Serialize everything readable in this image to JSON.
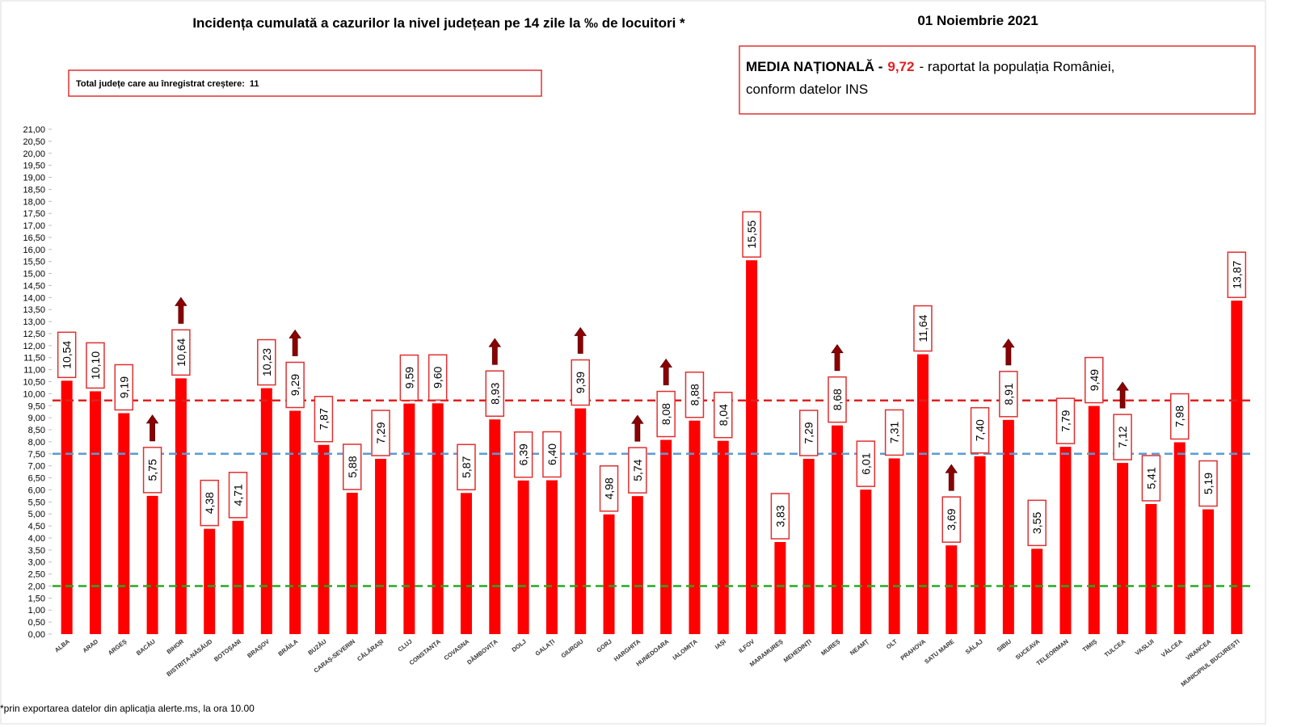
{
  "chart_data": {
    "type": "bar",
    "title": "Incidența cumulată a cazurilor la nivel județean pe 14 zile la ‰ de locuitori *",
    "date": "01 Noiembrie 2021",
    "increase_box": {
      "label": "Total județe care au înregistrat creștere:",
      "count": 11
    },
    "national_mean_box": {
      "prefix": "MEDIA NAȚIONALĂ -",
      "suffix": "-  raportat la populația României,",
      "line2": "conform datelor INS"
    },
    "footnote": "*prin exportarea datelor din aplicația alerte.ms, la ora 10.00",
    "categories": [
      "ALBA",
      "ARAD",
      "ARGEȘ",
      "BACĂU",
      "BIHOR",
      "BISTRIȚA-NĂSĂUD",
      "BOTOȘANI",
      "BRAȘOV",
      "BRĂILA",
      "BUZĂU",
      "CARAȘ-SEVERIN",
      "CĂLĂRAȘI",
      "CLUJ",
      "CONSTANȚA",
      "COVASNA",
      "DÂMBOVIȚA",
      "DOLJ",
      "GALAȚI",
      "GIURGIU",
      "GORJ",
      "HARGHITA",
      "HUNEDOARA",
      "IALOMIȚA",
      "IAȘI",
      "ILFOV",
      "MARAMUREȘ",
      "MEHEDINȚI",
      "MUREȘ",
      "NEAMȚ",
      "OLT",
      "PRAHOVA",
      "SATU MARE",
      "SĂLAJ",
      "SIBIU",
      "SUCEAVA",
      "TELEORMAN",
      "TIMIȘ",
      "TULCEA",
      "VASLUI",
      "VÂLCEA",
      "VRANCEA",
      "MUNICIPIUL BUCUREȘTI"
    ],
    "values": [
      10.54,
      10.1,
      9.19,
      5.75,
      10.64,
      4.38,
      4.71,
      10.23,
      9.29,
      7.87,
      5.88,
      7.29,
      9.59,
      9.6,
      5.87,
      8.93,
      6.39,
      6.4,
      9.39,
      4.98,
      5.74,
      8.08,
      8.88,
      8.04,
      15.55,
      3.83,
      7.29,
      8.68,
      6.01,
      7.31,
      11.64,
      3.69,
      7.4,
      8.91,
      3.55,
      7.79,
      9.49,
      7.12,
      5.41,
      7.98,
      5.19,
      13.87
    ],
    "value_labels": [
      "10,54",
      "10,10",
      "9,19",
      "5,75",
      "10,64",
      "4,38",
      "4,71",
      "10,23",
      "9,29",
      "7,87",
      "5,88",
      "7,29",
      "9,59",
      "9,60",
      "5,87",
      "8,93",
      "6,39",
      "6,40",
      "9,39",
      "4,98",
      "5,74",
      "8,08",
      "8,88",
      "8,04",
      "15,55",
      "3,83",
      "7,29",
      "8,68",
      "6,01",
      "7,31",
      "11,64",
      "3,69",
      "7,40",
      "8,91",
      "3,55",
      "7,79",
      "9,49",
      "7,12",
      "5,41",
      "7,98",
      "5,19",
      "13,87"
    ],
    "increased": [
      false,
      false,
      false,
      true,
      true,
      false,
      false,
      false,
      true,
      false,
      false,
      false,
      false,
      false,
      false,
      true,
      false,
      false,
      true,
      false,
      true,
      true,
      false,
      false,
      false,
      false,
      false,
      true,
      false,
      false,
      false,
      true,
      false,
      true,
      false,
      false,
      false,
      true,
      false,
      false,
      false,
      false
    ],
    "color": "#ff0000",
    "reference_lines": [
      {
        "value": 9.72,
        "label": "9,72",
        "color": "#e02020"
      },
      {
        "value": 7.5,
        "color": "#5b9bd5"
      },
      {
        "value": 2,
        "color": "#22aa22"
      }
    ],
    "ylim": [
      0,
      21
    ],
    "yticks": [
      {
        "value": 0,
        "label": "0,00"
      },
      {
        "value": 0.5,
        "label": "0,50"
      },
      {
        "value": 1,
        "label": "1,00"
      },
      {
        "value": 1.5,
        "label": "1,50"
      },
      {
        "value": 2,
        "label": "2,00"
      },
      {
        "value": 2.5,
        "label": "2,50"
      },
      {
        "value": 3,
        "label": "3,00"
      },
      {
        "value": 3.5,
        "label": "3,50"
      },
      {
        "value": 4,
        "label": "4,00"
      },
      {
        "value": 4.5,
        "label": "4,50"
      },
      {
        "value": 5,
        "label": "5,00"
      },
      {
        "value": 5.5,
        "label": "5,50"
      },
      {
        "value": 6,
        "label": "6,00"
      },
      {
        "value": 6.5,
        "label": "6,50"
      },
      {
        "value": 7,
        "label": "7,00"
      },
      {
        "value": 7.5,
        "label": "7,50"
      },
      {
        "value": 8,
        "label": "8,00"
      },
      {
        "value": 8.5,
        "label": "8,50"
      },
      {
        "value": 9,
        "label": "9,00"
      },
      {
        "value": 9.5,
        "label": "9,50"
      },
      {
        "value": 10,
        "label": "10,00"
      },
      {
        "value": 10.5,
        "label": "10,50"
      },
      {
        "value": 11,
        "label": "11,00"
      },
      {
        "value": 11.5,
        "label": "11,50"
      },
      {
        "value": 12,
        "label": "12,00"
      },
      {
        "value": 12.5,
        "label": "12,50"
      },
      {
        "value": 13,
        "label": "13,00"
      },
      {
        "value": 13.5,
        "label": "13,50"
      },
      {
        "value": 14,
        "label": "14,00"
      },
      {
        "value": 14.5,
        "label": "14,50"
      },
      {
        "value": 15,
        "label": "15,00"
      },
      {
        "value": 15.5,
        "label": "15,50"
      },
      {
        "value": 16,
        "label": "16,00"
      },
      {
        "value": 16.5,
        "label": "16,50"
      },
      {
        "value": 17,
        "label": "17,00"
      },
      {
        "value": 17.5,
        "label": "17,50"
      },
      {
        "value": 18,
        "label": "18,00"
      },
      {
        "value": 18.5,
        "label": "18,50"
      },
      {
        "value": 19,
        "label": "19,00"
      },
      {
        "value": 19.5,
        "label": "19,50"
      },
      {
        "value": 20,
        "label": "20,00"
      },
      {
        "value": 20.5,
        "label": "20,50"
      },
      {
        "value": 21,
        "label": "21,00"
      }
    ],
    "grid": false
  }
}
